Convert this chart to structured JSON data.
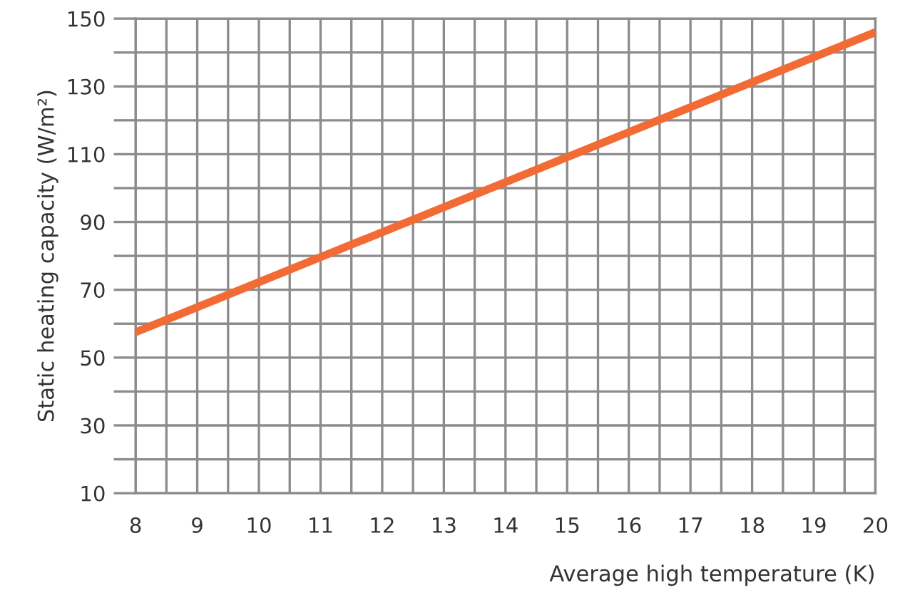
{
  "chart_data": {
    "type": "line",
    "xlabel": "Average high temperature (K)",
    "ylabel": "Static heating capacity (W/m²)",
    "x": [
      8,
      20
    ],
    "series": [
      {
        "color": "#f26b35",
        "values": [
          57.5,
          146
        ]
      }
    ],
    "xlim": [
      8,
      20
    ],
    "ylim": [
      10,
      150
    ],
    "xticks": [
      8,
      {
        "value": 8.5,
        "label": null
      },
      9,
      {
        "value": 9.5,
        "label": null
      },
      10,
      {
        "value": 10.5,
        "label": null
      },
      11,
      {
        "value": 11.5,
        "label": null
      },
      12,
      {
        "value": 12.5,
        "label": null
      },
      13,
      {
        "value": 13.5,
        "label": null
      },
      14,
      {
        "value": 14.5,
        "label": null
      },
      15,
      {
        "value": 15.5,
        "label": null
      },
      16,
      {
        "value": 16.5,
        "label": null
      },
      17,
      {
        "value": 17.5,
        "label": null
      },
      18,
      {
        "value": 18.5,
        "label": null
      },
      19,
      {
        "value": 19.5,
        "label": null
      },
      20
    ],
    "yticks": [
      10,
      {
        "value": 20,
        "label": null
      },
      30,
      {
        "value": 40,
        "label": null
      },
      50,
      {
        "value": 60,
        "label": null
      },
      70,
      {
        "value": 80,
        "label": null
      },
      90,
      {
        "value": 100,
        "label": null
      },
      110,
      {
        "value": 120,
        "label": null
      },
      130,
      {
        "value": 140,
        "label": null
      },
      150
    ],
    "grid": true,
    "marker": "none",
    "line_style": "solid"
  }
}
